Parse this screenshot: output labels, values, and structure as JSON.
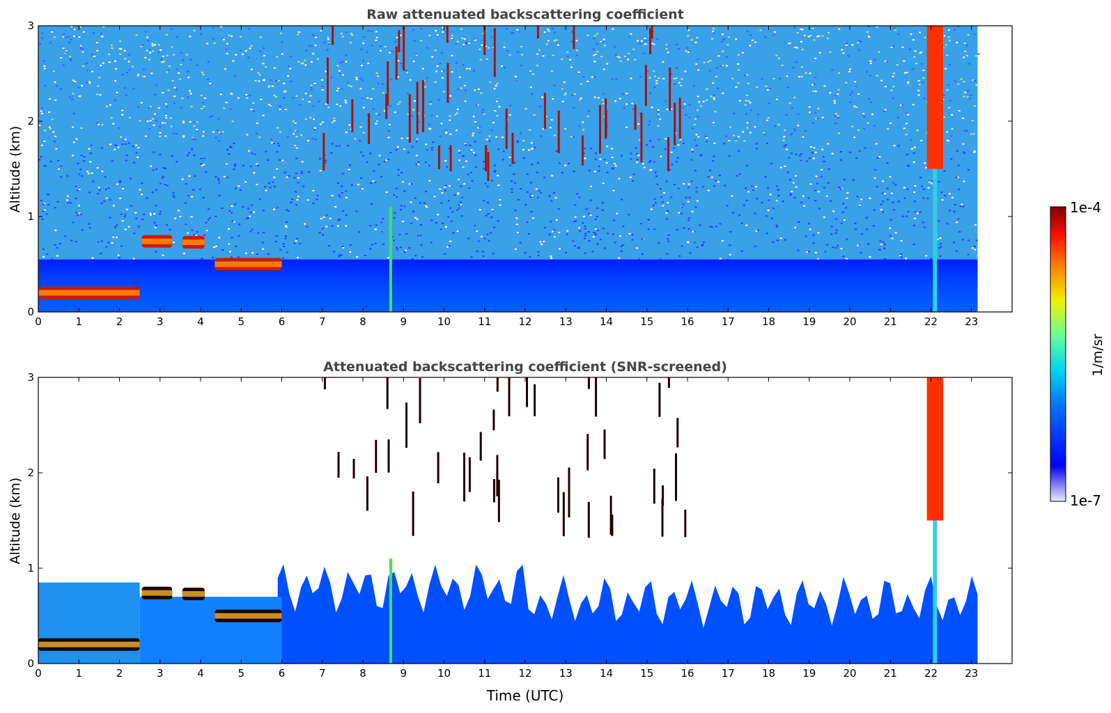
{
  "chart_data": [
    {
      "type": "heatmap",
      "title": "Raw attenuated backscattering coefficient",
      "xlabel": "",
      "ylabel": "Altitude (km)",
      "xlim": [
        0,
        24
      ],
      "ylim": [
        0,
        3
      ],
      "x_ticks": [
        "0",
        "1",
        "2",
        "3",
        "4",
        "5",
        "6",
        "7",
        "8",
        "9",
        "10",
        "11",
        "12",
        "13",
        "14",
        "15",
        "16",
        "17",
        "18",
        "19",
        "20",
        "21",
        "22",
        "23"
      ],
      "y_ticks": [
        "0",
        "1",
        "2",
        "3"
      ],
      "data_end_time": 23.15,
      "features": [
        {
          "kind": "boundary_layer_cloud",
          "t0": 0.0,
          "t1": 2.5,
          "alt": 0.2
        },
        {
          "kind": "cloud_layer",
          "t0": 2.55,
          "t1": 3.3,
          "alt": 0.74
        },
        {
          "kind": "cloud_layer",
          "t0": 3.55,
          "t1": 4.1,
          "alt": 0.73
        },
        {
          "kind": "cloud_layer",
          "t0": 4.35,
          "t1": 6.0,
          "alt": 0.5
        },
        {
          "kind": "rain_shaft",
          "t0": 8.65,
          "t1": 8.72,
          "alt_top": 1.1
        },
        {
          "kind": "precipitation_column",
          "t0": 21.9,
          "t1": 22.3,
          "alt_top": 3.0
        }
      ]
    },
    {
      "type": "heatmap",
      "title": "Attenuated backscattering coefficient (SNR-screened)",
      "xlabel": "Time (UTC)",
      "ylabel": "Altitude (km)",
      "xlim": [
        0,
        24
      ],
      "ylim": [
        0,
        3
      ],
      "x_ticks": [
        "0",
        "1",
        "2",
        "3",
        "4",
        "5",
        "6",
        "7",
        "8",
        "9",
        "10",
        "11",
        "12",
        "13",
        "14",
        "15",
        "16",
        "17",
        "18",
        "19",
        "20",
        "21",
        "22",
        "23"
      ],
      "y_ticks": [
        "0",
        "1",
        "2",
        "3"
      ],
      "data_end_time": 23.15
    }
  ],
  "colorbar": {
    "label": "1/m/sr",
    "max_label": "1e-4",
    "min_label": "1e-7",
    "scale": "log",
    "colormap": "jet",
    "colors": [
      "#e8e8f8",
      "#0000ff",
      "#00aaff",
      "#00e0e0",
      "#80ff80",
      "#ffff00",
      "#ff8000",
      "#ff0000",
      "#800000"
    ]
  }
}
